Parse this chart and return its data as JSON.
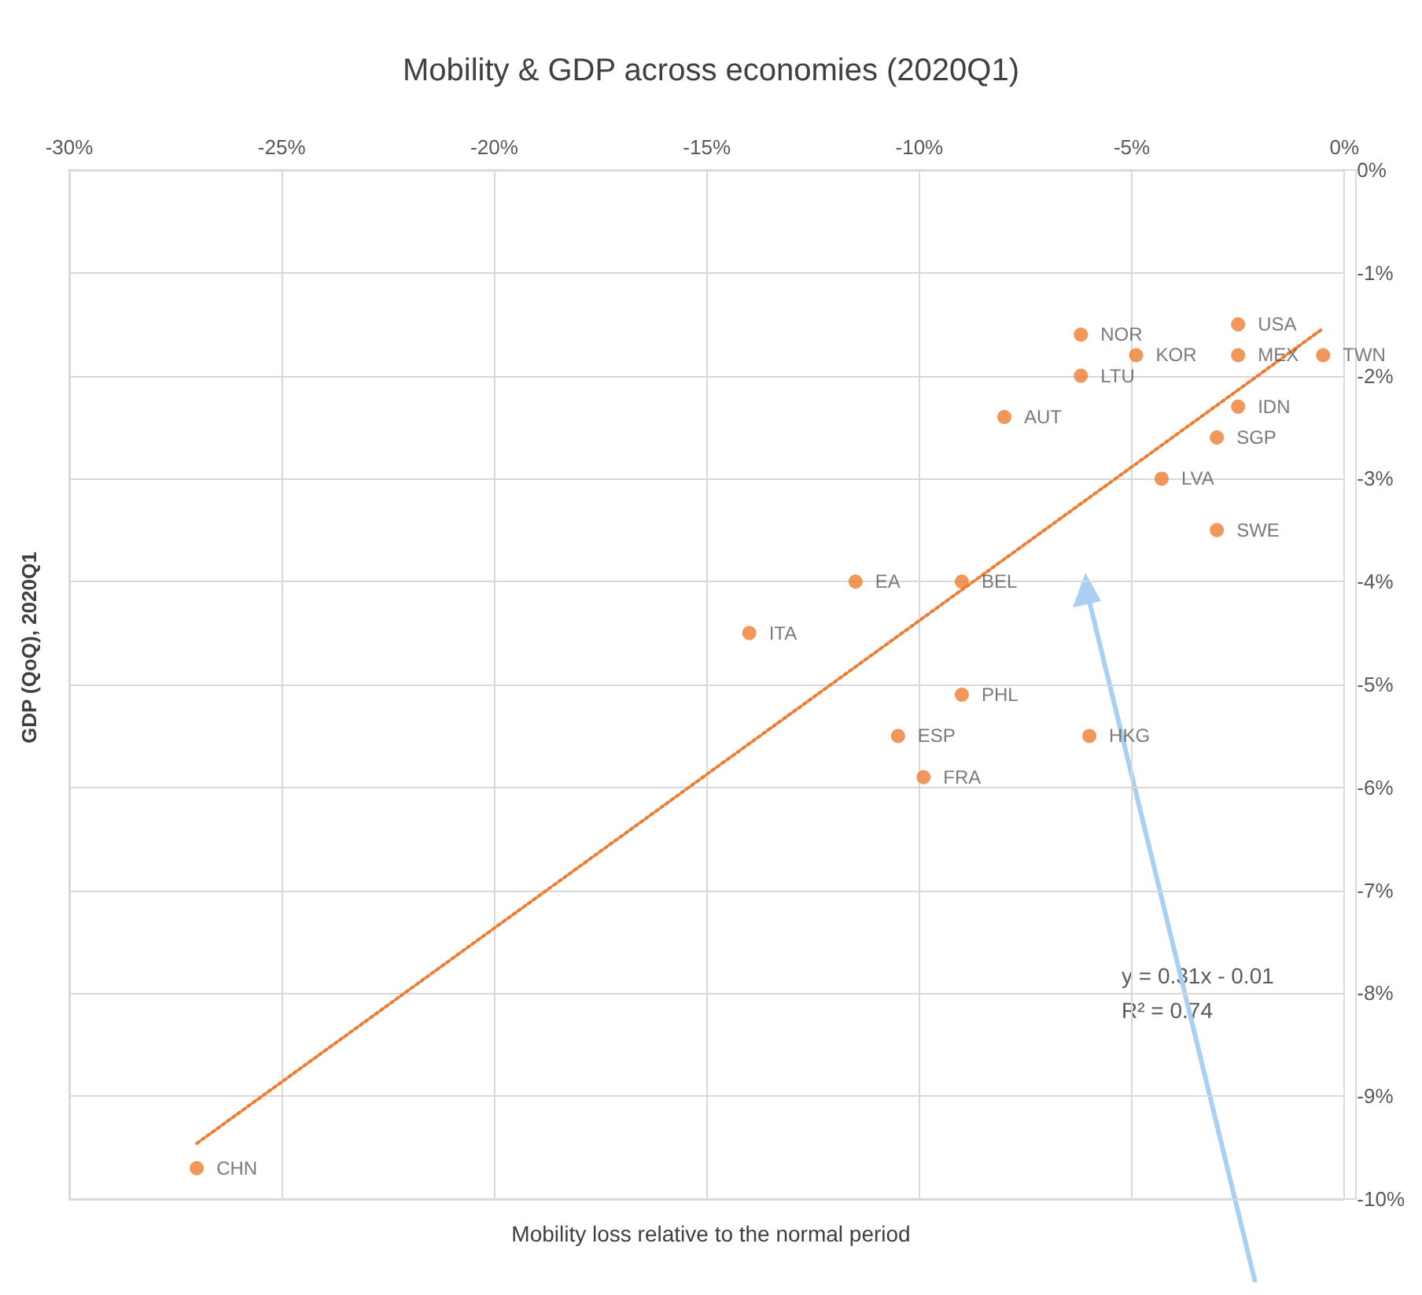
{
  "chart_data": {
    "type": "scatter",
    "title": "Mobility & GDP across economies (2020Q1)",
    "xlabel": "Mobility loss relative to the normal period",
    "ylabel": "GDP (QoQ), 2020Q1",
    "x": [
      -2.5,
      -6.2,
      -4.9,
      -2.5,
      -0.5,
      -6.2,
      -2.5,
      -8.0,
      -3.0,
      -4.3,
      -3.0,
      -11.5,
      -9.0,
      -14.0,
      -9.0,
      -10.5,
      -6.0,
      -9.9,
      -27.0
    ],
    "series": [
      {
        "color": "#ed7d31",
        "values": [
          -1.5,
          -1.6,
          -1.8,
          -1.8,
          -1.8,
          -2.0,
          -2.3,
          -2.4,
          -2.6,
          -3.0,
          -3.5,
          -4.0,
          -4.0,
          -4.5,
          -5.1,
          -5.5,
          -5.5,
          -5.9,
          -9.7
        ],
        "value_labels": [
          "USA",
          "NOR",
          "KOR",
          "MEX",
          "TWN",
          "LTU",
          "IDN",
          "AUT",
          "SGP",
          "LVA",
          "SWE",
          "EA",
          "BEL",
          "ITA",
          "PHL",
          "ESP",
          "HKG",
          "FRA",
          "CHN"
        ]
      },
      {
        "type": "line",
        "color": "#ed7d31",
        "line_style": "dotted",
        "marker": "none",
        "x": [
          -27.0,
          -0.5
        ],
        "values": [
          -9.46,
          -1.54
        ]
      }
    ],
    "marker": "circle",
    "annotations": [
      "y = 0.31x - 0.01",
      "R² = 0.74"
    ],
    "xlim": [
      -30,
      0
    ],
    "xticks": [
      {
        "value": -30,
        "label": "-30%"
      },
      {
        "value": -25,
        "label": "-25%"
      },
      {
        "value": -20,
        "label": "-20%"
      },
      {
        "value": -15,
        "label": "-15%"
      },
      {
        "value": -10,
        "label": "-10%"
      },
      {
        "value": -5,
        "label": "-5%"
      },
      {
        "value": 0,
        "label": "0%"
      }
    ],
    "ylim": [
      -10,
      0
    ],
    "yticks": [
      {
        "value": -10,
        "label": "-10%"
      },
      {
        "value": -9,
        "label": "-9%"
      },
      {
        "value": -8,
        "label": "-8%"
      },
      {
        "value": -7,
        "label": "-7%"
      },
      {
        "value": -6,
        "label": "-6%"
      },
      {
        "value": -5,
        "label": "-5%"
      },
      {
        "value": -4,
        "label": "-4%"
      },
      {
        "value": -3,
        "label": "-3%"
      },
      {
        "value": -2,
        "label": "-2%"
      },
      {
        "value": -1,
        "label": "-1%"
      },
      {
        "value": 0,
        "label": "0%"
      }
    ],
    "grid": true
  }
}
